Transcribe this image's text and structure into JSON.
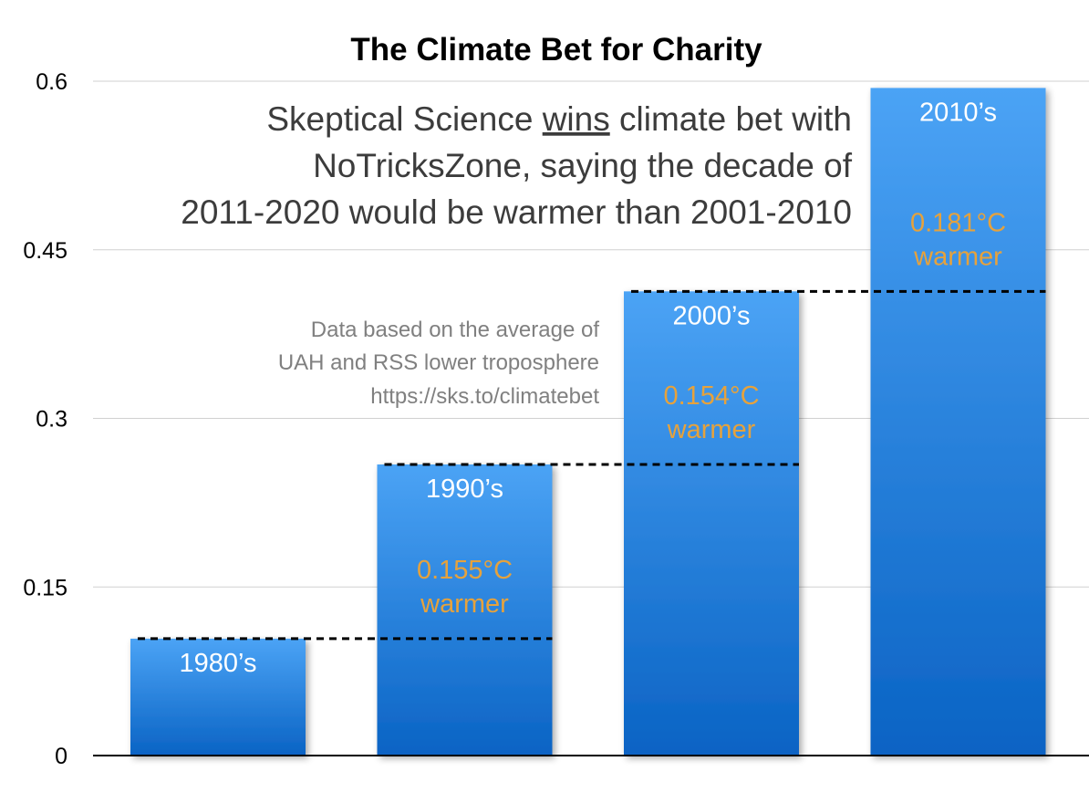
{
  "chart_data": {
    "type": "bar",
    "title": "The Climate Bet for Charity",
    "categories": [
      "1980’s",
      "1990’s",
      "2000’s",
      "2010’s"
    ],
    "values": [
      0.104,
      0.259,
      0.413,
      0.594
    ],
    "ylim": [
      0,
      0.6
    ],
    "yticks": [
      0,
      0.15,
      0.3,
      0.45,
      0.6
    ],
    "ytick_labels": [
      "0",
      "0.15",
      "0.3",
      "0.45",
      "0.6"
    ],
    "grid": true,
    "colors": {
      "bar_top": "#4ba3f5",
      "bar_bottom": "#0a63c4",
      "increment_text": "#e6a23c",
      "bar_label": "#ffffff",
      "headline_text": "#3c3c3c",
      "note_text": "#808080",
      "gridline": "#d0d0d0",
      "axis": "#000000"
    },
    "increments": [
      {
        "from": 0,
        "to": 1,
        "line1": "0.155°C",
        "line2": "warmer"
      },
      {
        "from": 1,
        "to": 2,
        "line1": "0.154°C",
        "line2": "warmer"
      },
      {
        "from": 2,
        "to": 3,
        "line1": "0.181°C",
        "line2": "warmer"
      }
    ],
    "headline": {
      "line1_before": "Skeptical Science ",
      "line1_underlined": "wins",
      "line1_after": " climate bet with",
      "line2": "NoTricksZone, saying the decade of",
      "line3": "2011-2020 would be warmer than 2001-2010"
    },
    "note": [
      "Data based on the average of",
      "UAH and RSS lower troposphere",
      "https://sks.to/climatebet"
    ]
  }
}
